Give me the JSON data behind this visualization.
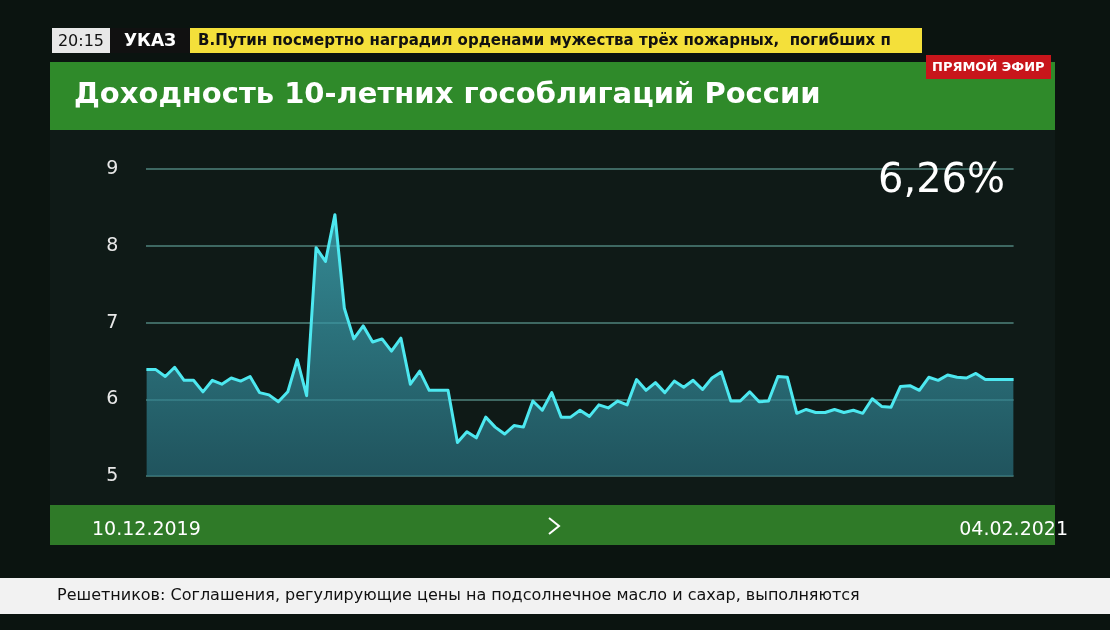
{
  "chart_data": {
    "type": "area",
    "title": "Доходность 10-летних гособлигаций России",
    "categories": [
      "10.12.2019",
      null,
      null,
      null,
      null,
      null,
      null,
      null,
      null,
      null,
      null,
      null,
      null,
      null,
      null,
      null,
      null,
      null,
      null,
      null,
      null,
      null,
      null,
      null,
      null,
      null,
      null,
      null,
      null,
      null,
      null,
      null,
      null,
      null,
      null,
      null,
      null,
      null,
      null,
      null,
      null,
      null,
      null,
      null,
      null,
      null,
      null,
      null,
      null,
      null,
      null,
      null,
      null,
      null,
      null,
      null,
      null,
      null,
      null,
      null,
      null,
      null,
      null,
      null,
      null,
      null,
      null,
      null,
      null,
      null,
      null,
      null,
      null,
      null,
      null,
      null,
      null,
      null,
      null,
      null,
      null,
      null,
      null,
      null,
      null,
      null,
      null,
      null,
      null,
      null,
      null,
      null,
      "04.02.2021"
    ],
    "series": [
      {
        "color": "#4de8f0",
        "values": [
          6.39,
          6.39,
          6.3,
          6.42,
          6.25,
          6.25,
          6.1,
          6.25,
          6.2,
          6.28,
          6.24,
          6.3,
          6.09,
          6.06,
          5.97,
          6.1,
          6.52,
          6.05,
          7.98,
          7.8,
          8.41,
          7.19,
          6.79,
          6.96,
          6.75,
          6.79,
          6.63,
          6.8,
          6.2,
          6.37,
          6.12,
          6.12,
          6.12,
          5.44,
          5.58,
          5.5,
          5.77,
          5.64,
          5.55,
          5.66,
          5.64,
          5.98,
          5.86,
          6.09,
          5.77,
          5.77,
          5.86,
          5.78,
          5.93,
          5.89,
          5.98,
          5.93,
          6.26,
          6.12,
          6.22,
          6.09,
          6.24,
          6.16,
          6.25,
          6.13,
          6.28,
          6.36,
          5.98,
          5.98,
          6.1,
          5.97,
          5.98,
          6.3,
          6.29,
          5.82,
          5.87,
          5.83,
          5.83,
          5.87,
          5.83,
          5.86,
          5.82,
          6.01,
          5.91,
          5.9,
          6.17,
          6.18,
          6.12,
          6.29,
          6.25,
          6.32,
          6.29,
          6.28,
          6.34,
          6.26,
          6.26,
          6.26,
          6.26
        ]
      }
    ],
    "ylim": [
      5,
      9
    ],
    "yticks": [
      5,
      6,
      7,
      8,
      9
    ],
    "grid": "y",
    "legend": false,
    "marker": "none",
    "line_style": "solid",
    "annotations": [
      "20:15",
      "УКАЗ",
      "В.Путин посмертно наградил орденами мужества трёх пожарных,  погибших п",
      "ПРЯМОЙ ЭФИР",
      "6,26%",
      "Решетников: Соглашения, регулирующие цены на подсолнечное масло и сахар, выполняются"
    ]
  }
}
